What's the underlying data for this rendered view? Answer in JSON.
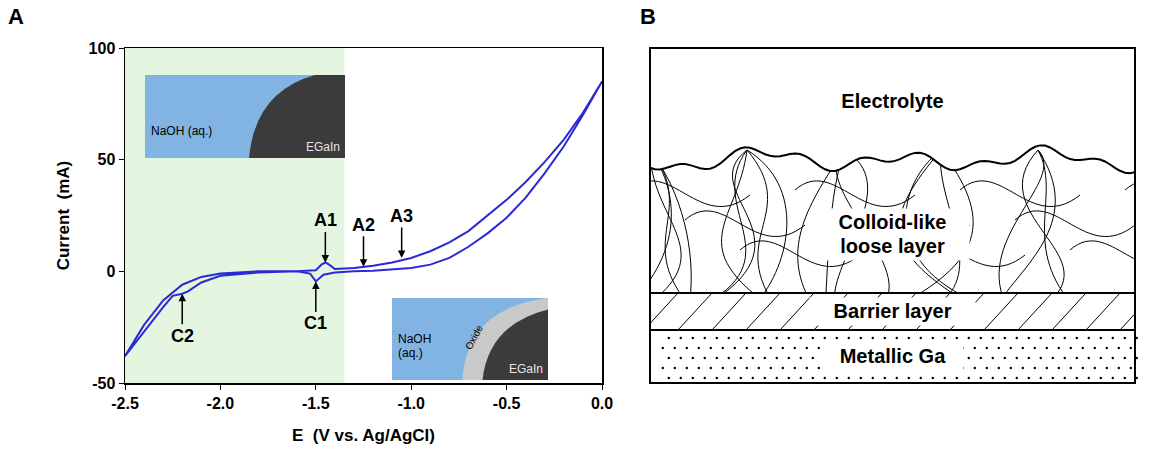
{
  "chart_data": {
    "type": "line",
    "panel_letter": "A",
    "x_label": "E  (V vs. Ag/AgCl)",
    "y_label": "Current  (mA)",
    "xlim": [
      -2.5,
      0.0
    ],
    "xticks": [
      -2.5,
      {
        "value": -2.0,
        "label": "-2.0"
      },
      -1.5,
      {
        "value": -1.0,
        "label": "-1.0"
      },
      -0.5,
      {
        "value": 0.0,
        "label": "0.0"
      }
    ],
    "ylim": [
      -50,
      100
    ],
    "yticks": [
      -50,
      0,
      50,
      100
    ],
    "grid": false,
    "color": "#2a2ad4",
    "x": [
      0,
      -0.1,
      -0.2,
      -0.3,
      -0.4,
      -0.5,
      -0.6,
      -0.7,
      -0.8,
      -0.9,
      -1.0,
      -1.1,
      -1.2,
      -1.3,
      -1.4,
      -1.46,
      -1.5,
      -1.53,
      -1.6,
      -1.8,
      -2.0,
      -2.1,
      -2.17,
      -2.2,
      -2.25,
      -2.3,
      -2.4,
      -2.5,
      -2.4,
      -2.3,
      -2.2,
      -2.1,
      -2.0,
      -1.8,
      -1.6,
      -1.5,
      -1.47,
      -1.45,
      -1.43,
      -1.4,
      -1.3,
      -1.2,
      -1.1,
      -1.0,
      -0.9,
      -0.8,
      -0.7,
      -0.6,
      -0.5,
      -0.4,
      -0.3,
      -0.2,
      -0.1,
      0
    ],
    "values": [
      85,
      70,
      56,
      44,
      33,
      24,
      17,
      11,
      6,
      3,
      1.5,
      0.8,
      0.3,
      0,
      -0.5,
      -1.5,
      -4.5,
      -1,
      0,
      -0.5,
      -2,
      -5,
      -9,
      -10,
      -11,
      -16,
      -27,
      -38,
      -24,
      -13,
      -6,
      -2.5,
      -1,
      0,
      0,
      0.5,
      3,
      4,
      3,
      1,
      1.5,
      2.5,
      4,
      6,
      9,
      13,
      18,
      25,
      32,
      40,
      49,
      59,
      71,
      85
    ],
    "highlight": {
      "x": [
        -2.5,
        -1.35
      ],
      "color": "#e4f5e0"
    },
    "annotations": [
      {
        "text": "A1",
        "x": -1.45,
        "y": 4,
        "side": "above"
      },
      {
        "text": "A2",
        "x": -1.25,
        "y": 2,
        "side": "above"
      },
      {
        "text": "A3",
        "x": -1.05,
        "y": 6,
        "side": "above"
      },
      {
        "text": "C1",
        "x": -1.5,
        "y": -4.5,
        "side": "below"
      },
      {
        "text": "C2",
        "x": -2.2,
        "y": -10,
        "side": "below"
      }
    ],
    "insets": [
      {
        "electrolyte": "NaOH (aq.)",
        "metal": "EGaIn"
      },
      {
        "electrolyte": "NaOH (aq.)",
        "oxide": "Oxide",
        "metal": "EGaIn"
      }
    ]
  },
  "diagram": {
    "panel_letter": "B",
    "layers": [
      {
        "label": "Electrolyte"
      },
      {
        "label": "Colloid-like loose layer"
      },
      {
        "label": "Barrier layer"
      },
      {
        "label": "Metallic Ga"
      }
    ]
  }
}
